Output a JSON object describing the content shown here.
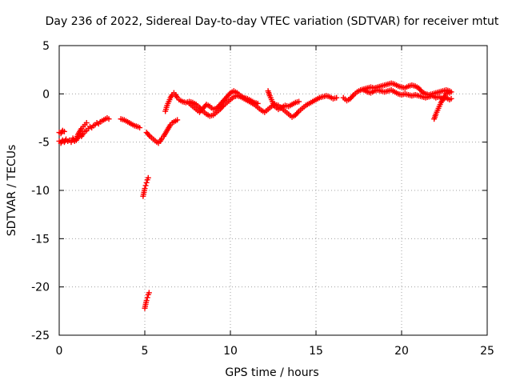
{
  "chart_data": {
    "type": "scatter",
    "title": "Day 236 of 2022, Sidereal Day-to-day VTEC variation (SDTVAR) for receiver mtut",
    "xlabel": "GPS time / hours",
    "ylabel": "SDTVAR / TECUs",
    "xlim": [
      0,
      25
    ],
    "ylim": [
      -25,
      5
    ],
    "xticks": [
      0,
      5,
      10,
      15,
      20,
      25
    ],
    "yticks": [
      5,
      0,
      -5,
      -10,
      -15,
      -20,
      -25
    ],
    "grid": true,
    "marker": "plus",
    "series": [
      {
        "name": "SDTVAR",
        "color": "#ff0000",
        "segments": [
          [
            [
              0.0,
              -4.9
            ],
            [
              0.1,
              -5.1
            ],
            [
              0.2,
              -4.8
            ],
            [
              0.3,
              -5.0
            ],
            [
              0.4,
              -4.7
            ],
            [
              0.5,
              -4.9
            ],
            [
              0.6,
              -4.8
            ],
            [
              0.7,
              -5.0
            ],
            [
              0.8,
              -4.6
            ],
            [
              0.9,
              -4.9
            ],
            [
              1.0,
              -4.8
            ],
            [
              1.1,
              -4.5
            ],
            [
              1.2,
              -4.3
            ],
            [
              1.3,
              -4.4
            ],
            [
              1.4,
              -4.1
            ],
            [
              1.5,
              -3.9
            ],
            [
              1.6,
              -3.8
            ],
            [
              1.7,
              -3.6
            ],
            [
              1.8,
              -3.4
            ],
            [
              1.9,
              -3.5
            ],
            [
              2.0,
              -3.3
            ],
            [
              2.1,
              -3.2
            ],
            [
              2.2,
              -3.0
            ],
            [
              2.3,
              -3.1
            ],
            [
              2.4,
              -2.9
            ],
            [
              2.5,
              -2.8
            ],
            [
              2.6,
              -2.7
            ],
            [
              2.7,
              -2.6
            ],
            [
              2.8,
              -2.5
            ],
            [
              2.9,
              -2.6
            ]
          ],
          [
            [
              0.0,
              -4.0
            ],
            [
              0.1,
              -4.1
            ],
            [
              0.2,
              -3.8
            ],
            [
              0.3,
              -3.9
            ]
          ],
          [
            [
              1.0,
              -4.6
            ],
            [
              1.1,
              -4.2
            ],
            [
              1.2,
              -3.9
            ],
            [
              1.3,
              -3.6
            ],
            [
              1.4,
              -3.4
            ],
            [
              1.5,
              -3.2
            ],
            [
              1.6,
              -3.0
            ]
          ],
          [
            [
              3.6,
              -2.6
            ],
            [
              3.8,
              -2.7
            ],
            [
              4.0,
              -2.9
            ],
            [
              4.2,
              -3.1
            ],
            [
              4.4,
              -3.3
            ],
            [
              4.6,
              -3.4
            ],
            [
              4.7,
              -3.5
            ]
          ],
          [
            [
              5.1,
              -4.0
            ],
            [
              5.3,
              -4.4
            ],
            [
              5.5,
              -4.7
            ],
            [
              5.7,
              -5.0
            ],
            [
              5.8,
              -5.1
            ],
            [
              5.9,
              -4.9
            ],
            [
              6.0,
              -4.6
            ],
            [
              6.1,
              -4.4
            ],
            [
              6.2,
              -4.1
            ],
            [
              6.3,
              -3.8
            ],
            [
              6.4,
              -3.5
            ],
            [
              6.5,
              -3.2
            ],
            [
              6.6,
              -3.0
            ],
            [
              6.7,
              -2.9
            ],
            [
              6.8,
              -2.8
            ],
            [
              6.9,
              -2.7
            ]
          ],
          [
            [
              4.9,
              -10.6
            ],
            [
              4.95,
              -10.2
            ],
            [
              5.0,
              -9.8
            ],
            [
              5.05,
              -9.5
            ],
            [
              5.1,
              -9.2
            ],
            [
              5.15,
              -8.9
            ],
            [
              5.2,
              -8.7
            ]
          ],
          [
            [
              5.0,
              -22.2
            ],
            [
              5.05,
              -21.8
            ],
            [
              5.1,
              -21.4
            ],
            [
              5.15,
              -21.1
            ],
            [
              5.2,
              -20.8
            ],
            [
              5.25,
              -20.6
            ]
          ],
          [
            [
              6.2,
              -1.8
            ],
            [
              6.3,
              -1.2
            ],
            [
              6.4,
              -0.8
            ],
            [
              6.5,
              -0.4
            ],
            [
              6.6,
              -0.1
            ],
            [
              6.7,
              0.1
            ],
            [
              6.8,
              -0.1
            ],
            [
              6.9,
              -0.4
            ],
            [
              7.0,
              -0.6
            ],
            [
              7.2,
              -0.8
            ],
            [
              7.4,
              -0.9
            ],
            [
              7.6,
              -0.8
            ],
            [
              7.8,
              -0.9
            ],
            [
              8.0,
              -1.1
            ],
            [
              8.2,
              -1.4
            ],
            [
              8.4,
              -1.8
            ],
            [
              8.6,
              -2.1
            ],
            [
              8.8,
              -2.3
            ],
            [
              9.0,
              -2.2
            ],
            [
              9.2,
              -1.9
            ],
            [
              9.4,
              -1.6
            ],
            [
              9.6,
              -1.2
            ],
            [
              9.8,
              -0.9
            ],
            [
              10.0,
              -0.6
            ],
            [
              10.2,
              -0.3
            ],
            [
              10.4,
              -0.2
            ],
            [
              10.6,
              -0.3
            ],
            [
              10.8,
              -0.5
            ],
            [
              11.0,
              -0.7
            ],
            [
              11.2,
              -0.9
            ],
            [
              11.4,
              -1.1
            ],
            [
              11.6,
              -1.4
            ],
            [
              11.8,
              -1.7
            ],
            [
              12.0,
              -1.9
            ],
            [
              12.2,
              -1.6
            ],
            [
              12.4,
              -1.3
            ],
            [
              12.6,
              -1.1
            ],
            [
              12.8,
              -1.2
            ],
            [
              13.0,
              -1.5
            ],
            [
              13.2,
              -1.8
            ],
            [
              13.4,
              -2.1
            ],
            [
              13.6,
              -2.4
            ],
            [
              13.8,
              -2.2
            ],
            [
              14.0,
              -1.8
            ],
            [
              14.2,
              -1.5
            ],
            [
              14.4,
              -1.2
            ],
            [
              14.6,
              -1.0
            ],
            [
              14.8,
              -0.8
            ],
            [
              15.0,
              -0.6
            ],
            [
              15.2,
              -0.4
            ],
            [
              15.4,
              -0.3
            ],
            [
              15.6,
              -0.2
            ],
            [
              15.8,
              -0.3
            ],
            [
              16.0,
              -0.5
            ],
            [
              16.2,
              -0.4
            ]
          ],
          [
            [
              7.6,
              -1.0
            ],
            [
              7.8,
              -1.3
            ],
            [
              8.0,
              -1.6
            ],
            [
              8.2,
              -1.9
            ],
            [
              8.4,
              -1.5
            ],
            [
              8.6,
              -1.1
            ],
            [
              8.8,
              -1.3
            ],
            [
              9.0,
              -1.6
            ],
            [
              9.2,
              -1.5
            ],
            [
              9.4,
              -1.1
            ],
            [
              9.6,
              -0.7
            ],
            [
              9.8,
              -0.3
            ],
            [
              10.0,
              0.1
            ],
            [
              10.2,
              0.3
            ],
            [
              10.4,
              0.1
            ],
            [
              10.6,
              -0.2
            ],
            [
              10.8,
              -0.4
            ],
            [
              11.0,
              -0.5
            ],
            [
              11.2,
              -0.7
            ],
            [
              11.4,
              -0.9
            ],
            [
              11.6,
              -1.0
            ]
          ],
          [
            [
              12.2,
              0.3
            ],
            [
              12.3,
              -0.2
            ],
            [
              12.4,
              -0.6
            ],
            [
              12.5,
              -1.0
            ],
            [
              12.6,
              -1.3
            ],
            [
              12.8,
              -1.6
            ],
            [
              13.0,
              -1.4
            ],
            [
              13.2,
              -1.2
            ],
            [
              13.4,
              -1.3
            ],
            [
              13.6,
              -1.1
            ],
            [
              13.8,
              -0.9
            ],
            [
              14.0,
              -0.8
            ]
          ],
          [
            [
              16.6,
              -0.4
            ],
            [
              16.8,
              -0.7
            ],
            [
              17.0,
              -0.5
            ],
            [
              17.2,
              -0.1
            ],
            [
              17.4,
              0.2
            ],
            [
              17.6,
              0.4
            ],
            [
              17.8,
              0.5
            ],
            [
              18.0,
              0.6
            ],
            [
              18.2,
              0.7
            ],
            [
              18.4,
              0.6
            ],
            [
              18.6,
              0.7
            ],
            [
              18.8,
              0.8
            ],
            [
              19.0,
              0.9
            ],
            [
              19.2,
              1.0
            ],
            [
              19.4,
              1.1
            ],
            [
              19.6,
              1.0
            ],
            [
              19.8,
              0.8
            ],
            [
              20.0,
              0.7
            ],
            [
              20.2,
              0.6
            ],
            [
              20.4,
              0.8
            ],
            [
              20.6,
              0.9
            ],
            [
              20.8,
              0.8
            ],
            [
              21.0,
              0.6
            ],
            [
              21.2,
              0.2
            ],
            [
              21.4,
              0.0
            ],
            [
              21.6,
              -0.1
            ],
            [
              21.8,
              0.0
            ],
            [
              22.0,
              0.1
            ],
            [
              22.2,
              0.2
            ],
            [
              22.4,
              0.3
            ],
            [
              22.6,
              0.4
            ],
            [
              22.8,
              0.3
            ],
            [
              22.9,
              0.2
            ]
          ],
          [
            [
              17.8,
              0.4
            ],
            [
              18.0,
              0.2
            ],
            [
              18.2,
              0.1
            ],
            [
              18.4,
              0.3
            ],
            [
              18.6,
              0.4
            ],
            [
              18.8,
              0.3
            ],
            [
              19.0,
              0.2
            ],
            [
              19.2,
              0.3
            ],
            [
              19.4,
              0.4
            ],
            [
              19.6,
              0.2
            ],
            [
              19.8,
              0.0
            ],
            [
              20.0,
              -0.1
            ],
            [
              20.2,
              0.0
            ],
            [
              20.4,
              -0.1
            ],
            [
              20.6,
              -0.2
            ],
            [
              20.8,
              -0.1
            ],
            [
              21.0,
              -0.2
            ],
            [
              21.2,
              -0.3
            ],
            [
              21.4,
              -0.4
            ],
            [
              21.6,
              -0.3
            ],
            [
              21.8,
              -0.2
            ],
            [
              22.0,
              -0.4
            ],
            [
              22.2,
              -0.3
            ],
            [
              22.4,
              -0.5
            ],
            [
              22.6,
              -0.4
            ],
            [
              22.8,
              -0.6
            ],
            [
              22.9,
              -0.5
            ]
          ],
          [
            [
              21.9,
              -2.6
            ],
            [
              22.0,
              -2.1
            ],
            [
              22.1,
              -1.7
            ],
            [
              22.2,
              -1.3
            ],
            [
              22.3,
              -0.9
            ],
            [
              22.4,
              -0.6
            ],
            [
              22.5,
              -0.3
            ],
            [
              22.6,
              0.0
            ],
            [
              22.7,
              0.2
            ],
            [
              22.8,
              0.1
            ]
          ]
        ]
      }
    ]
  }
}
